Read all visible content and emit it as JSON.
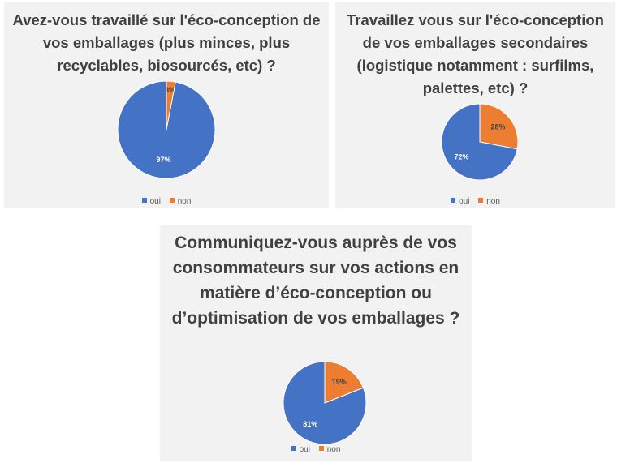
{
  "chart_data": [
    {
      "type": "pie",
      "title": "Avez-vous travaillé sur l'éco-conception de\nvos emballages (plus minces, plus\nrecyclables, biosourcés, etc) ?",
      "slices": [
        {
          "label": "oui",
          "value": 97,
          "display": "97%",
          "color": "#4472c4"
        },
        {
          "label": "non",
          "value": 3,
          "display": "3%",
          "color": "#ed7d31"
        }
      ],
      "legend": [
        "oui",
        "non"
      ],
      "legend_position": "bottom"
    },
    {
      "type": "pie",
      "title": "Travaillez vous sur l'éco-conception\nde vos emballages secondaires\n(logistique notamment : surfilms,\npalettes, etc) ?",
      "slices": [
        {
          "label": "oui",
          "value": 72,
          "display": "72%",
          "color": "#4472c4"
        },
        {
          "label": "non",
          "value": 28,
          "display": "28%",
          "color": "#ed7d31"
        }
      ],
      "legend": [
        "oui",
        "non"
      ],
      "legend_position": "bottom"
    },
    {
      "type": "pie",
      "title": "Communiquez-vous auprès de vos\nconsommateurs sur vos actions en\nmatière d’éco-conception ou\nd’optimisation de vos emballages ?",
      "slices": [
        {
          "label": "oui",
          "value": 81,
          "display": "81%",
          "color": "#4472c4"
        },
        {
          "label": "non",
          "value": 19,
          "display": "19%",
          "color": "#ed7d31"
        }
      ],
      "legend": [
        "oui",
        "non"
      ],
      "legend_position": "bottom"
    }
  ]
}
